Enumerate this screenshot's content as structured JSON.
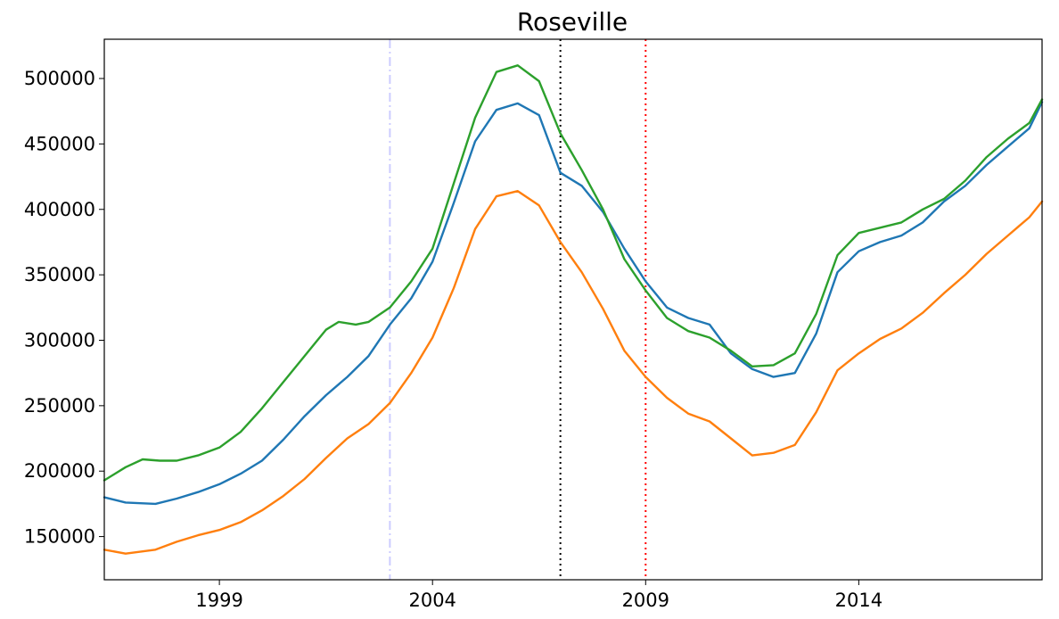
{
  "chart_data": {
    "type": "line",
    "title": "Roseville",
    "xlabel": "",
    "ylabel": "",
    "xlim": [
      1996.3,
      2018.3
    ],
    "ylim": [
      117000,
      530000
    ],
    "x_ticks": [
      1999,
      2004,
      2009,
      2014
    ],
    "y_ticks": [
      150000,
      200000,
      250000,
      300000,
      350000,
      400000,
      450000,
      500000
    ],
    "grid": false,
    "vertical_lines": [
      {
        "x": 2003.0,
        "color": "#ccccff",
        "style": "dashdot"
      },
      {
        "x": 2007.0,
        "color": "#000000",
        "style": "dotted"
      },
      {
        "x": 2009.0,
        "color": "#ff0000",
        "style": "dotted"
      }
    ],
    "series": [
      {
        "color": "#1f77b4",
        "points": [
          [
            1996.3,
            180000
          ],
          [
            1996.8,
            176000
          ],
          [
            1997.5,
            175000
          ],
          [
            1998.0,
            179000
          ],
          [
            1998.5,
            184000
          ],
          [
            1999.0,
            190000
          ],
          [
            1999.5,
            198000
          ],
          [
            2000.0,
            208000
          ],
          [
            2000.5,
            224000
          ],
          [
            2001.0,
            242000
          ],
          [
            2001.5,
            258000
          ],
          [
            2002.0,
            272000
          ],
          [
            2002.5,
            288000
          ],
          [
            2003.0,
            312000
          ],
          [
            2003.5,
            332000
          ],
          [
            2004.0,
            360000
          ],
          [
            2004.5,
            405000
          ],
          [
            2005.0,
            452000
          ],
          [
            2005.5,
            476000
          ],
          [
            2006.0,
            481000
          ],
          [
            2006.5,
            472000
          ],
          [
            2007.0,
            428000
          ],
          [
            2007.5,
            418000
          ],
          [
            2008.0,
            398000
          ],
          [
            2008.5,
            370000
          ],
          [
            2009.0,
            345000
          ],
          [
            2009.5,
            325000
          ],
          [
            2010.0,
            317000
          ],
          [
            2010.5,
            312000
          ],
          [
            2011.0,
            290000
          ],
          [
            2011.5,
            278000
          ],
          [
            2012.0,
            272000
          ],
          [
            2012.5,
            275000
          ],
          [
            2013.0,
            305000
          ],
          [
            2013.5,
            352000
          ],
          [
            2014.0,
            368000
          ],
          [
            2014.5,
            375000
          ],
          [
            2015.0,
            380000
          ],
          [
            2015.5,
            390000
          ],
          [
            2016.0,
            406000
          ],
          [
            2016.5,
            418000
          ],
          [
            2017.0,
            434000
          ],
          [
            2017.5,
            448000
          ],
          [
            2018.0,
            462000
          ],
          [
            2018.3,
            482000
          ]
        ]
      },
      {
        "color": "#ff7f0e",
        "points": [
          [
            1996.3,
            140000
          ],
          [
            1996.8,
            137000
          ],
          [
            1997.5,
            140000
          ],
          [
            1998.0,
            146000
          ],
          [
            1998.5,
            151000
          ],
          [
            1999.0,
            155000
          ],
          [
            1999.5,
            161000
          ],
          [
            2000.0,
            170000
          ],
          [
            2000.5,
            181000
          ],
          [
            2001.0,
            194000
          ],
          [
            2001.5,
            210000
          ],
          [
            2002.0,
            225000
          ],
          [
            2002.5,
            236000
          ],
          [
            2003.0,
            252000
          ],
          [
            2003.5,
            275000
          ],
          [
            2004.0,
            302000
          ],
          [
            2004.5,
            340000
          ],
          [
            2005.0,
            385000
          ],
          [
            2005.5,
            410000
          ],
          [
            2006.0,
            414000
          ],
          [
            2006.5,
            403000
          ],
          [
            2007.0,
            375000
          ],
          [
            2007.5,
            352000
          ],
          [
            2008.0,
            324000
          ],
          [
            2008.5,
            292000
          ],
          [
            2009.0,
            272000
          ],
          [
            2009.5,
            256000
          ],
          [
            2010.0,
            244000
          ],
          [
            2010.5,
            238000
          ],
          [
            2011.0,
            225000
          ],
          [
            2011.5,
            212000
          ],
          [
            2012.0,
            214000
          ],
          [
            2012.5,
            220000
          ],
          [
            2013.0,
            245000
          ],
          [
            2013.5,
            277000
          ],
          [
            2014.0,
            290000
          ],
          [
            2014.5,
            301000
          ],
          [
            2015.0,
            309000
          ],
          [
            2015.5,
            321000
          ],
          [
            2016.0,
            336000
          ],
          [
            2016.5,
            350000
          ],
          [
            2017.0,
            366000
          ],
          [
            2017.5,
            380000
          ],
          [
            2018.0,
            394000
          ],
          [
            2018.3,
            406000
          ]
        ]
      },
      {
        "color": "#2ca02c",
        "points": [
          [
            1996.3,
            193000
          ],
          [
            1996.8,
            203000
          ],
          [
            1997.2,
            209000
          ],
          [
            1997.6,
            208000
          ],
          [
            1998.0,
            208000
          ],
          [
            1998.5,
            212000
          ],
          [
            1999.0,
            218000
          ],
          [
            1999.5,
            230000
          ],
          [
            2000.0,
            248000
          ],
          [
            2000.5,
            268000
          ],
          [
            2001.0,
            288000
          ],
          [
            2001.5,
            308000
          ],
          [
            2001.8,
            314000
          ],
          [
            2002.2,
            312000
          ],
          [
            2002.5,
            314000
          ],
          [
            2003.0,
            325000
          ],
          [
            2003.5,
            345000
          ],
          [
            2004.0,
            370000
          ],
          [
            2004.5,
            420000
          ],
          [
            2005.0,
            470000
          ],
          [
            2005.5,
            505000
          ],
          [
            2006.0,
            510000
          ],
          [
            2006.5,
            498000
          ],
          [
            2007.0,
            458000
          ],
          [
            2007.5,
            430000
          ],
          [
            2008.0,
            400000
          ],
          [
            2008.5,
            362000
          ],
          [
            2009.0,
            338000
          ],
          [
            2009.5,
            317000
          ],
          [
            2010.0,
            307000
          ],
          [
            2010.5,
            302000
          ],
          [
            2011.0,
            292000
          ],
          [
            2011.5,
            280000
          ],
          [
            2012.0,
            281000
          ],
          [
            2012.5,
            290000
          ],
          [
            2013.0,
            320000
          ],
          [
            2013.5,
            365000
          ],
          [
            2014.0,
            382000
          ],
          [
            2014.5,
            386000
          ],
          [
            2015.0,
            390000
          ],
          [
            2015.5,
            400000
          ],
          [
            2016.0,
            408000
          ],
          [
            2016.5,
            422000
          ],
          [
            2017.0,
            440000
          ],
          [
            2017.5,
            454000
          ],
          [
            2018.0,
            466000
          ],
          [
            2018.3,
            484000
          ]
        ]
      }
    ]
  }
}
